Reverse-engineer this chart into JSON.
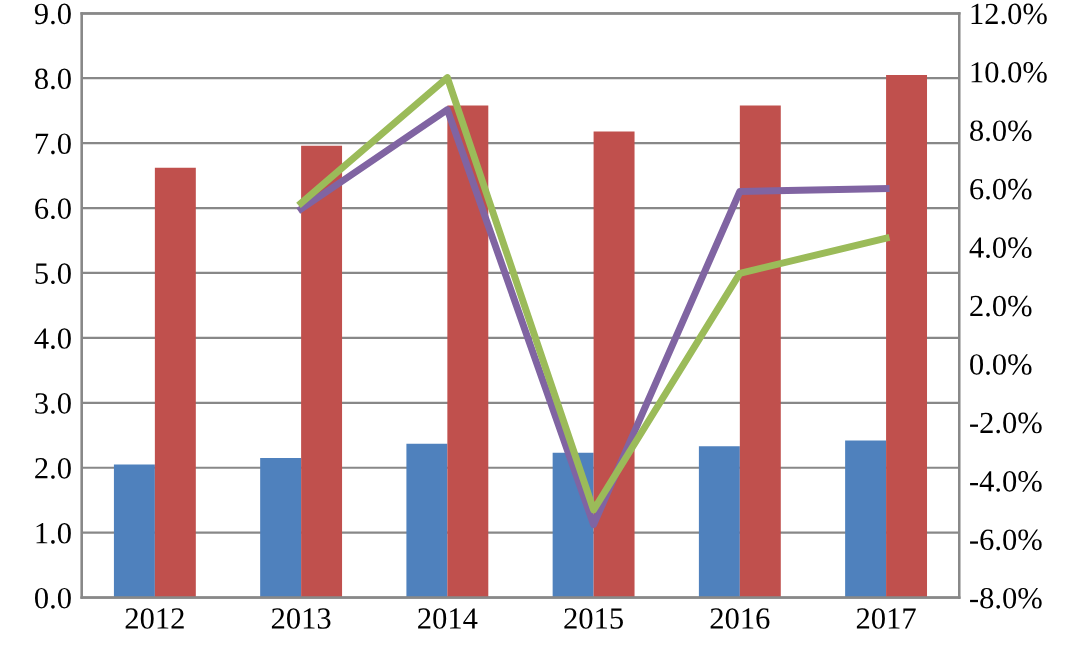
{
  "chart_data": {
    "type": "bar",
    "categories": [
      "2012",
      "2013",
      "2014",
      "2015",
      "2016",
      "2017"
    ],
    "series": [
      {
        "color": "#4f81bd",
        "values": [
          2.05,
          2.15,
          2.37,
          2.23,
          2.33,
          2.42
        ]
      },
      {
        "color": "#c0504d",
        "values": [
          6.62,
          6.96,
          7.58,
          7.18,
          7.58,
          8.05
        ]
      },
      {
        "type": "line",
        "axis": "y2",
        "color": "#8064a2",
        "values": [
          null,
          5.3,
          8.7,
          -5.5,
          5.9,
          6.0
        ]
      },
      {
        "type": "line",
        "axis": "y2",
        "color": "#9bbb59",
        "values": [
          null,
          5.5,
          9.8,
          -5.0,
          3.1,
          4.3
        ]
      }
    ],
    "ylim": [
      0,
      9
    ],
    "yticks": [
      {
        "value": 0,
        "label": "0.0"
      },
      {
        "value": 1,
        "label": "1.0"
      },
      {
        "value": 2,
        "label": "2.0"
      },
      {
        "value": 3,
        "label": "3.0"
      },
      {
        "value": 4,
        "label": "4.0"
      },
      {
        "value": 5,
        "label": "5.0"
      },
      {
        "value": 6,
        "label": "6.0"
      },
      {
        "value": 7,
        "label": "7.0"
      },
      {
        "value": 8,
        "label": "8.0"
      },
      {
        "value": 9,
        "label": "9.0"
      }
    ],
    "y2lim": [
      -8,
      12
    ],
    "y2ticks": [
      {
        "value": -8,
        "label": "-8.0%"
      },
      {
        "value": -6,
        "label": "-6.0%"
      },
      {
        "value": -4,
        "label": "-4.0%"
      },
      {
        "value": -2,
        "label": "-2.0%"
      },
      {
        "value": 0,
        "label": "0.0%"
      },
      {
        "value": 2,
        "label": "2.0%"
      },
      {
        "value": 4,
        "label": "4.0%"
      },
      {
        "value": 6,
        "label": "6.0%"
      },
      {
        "value": 8,
        "label": "8.0%"
      },
      {
        "value": 10,
        "label": "10.0%"
      },
      {
        "value": 12,
        "label": "12.0%"
      }
    ],
    "grid": "y",
    "marker": "none",
    "line_style": "solid"
  }
}
